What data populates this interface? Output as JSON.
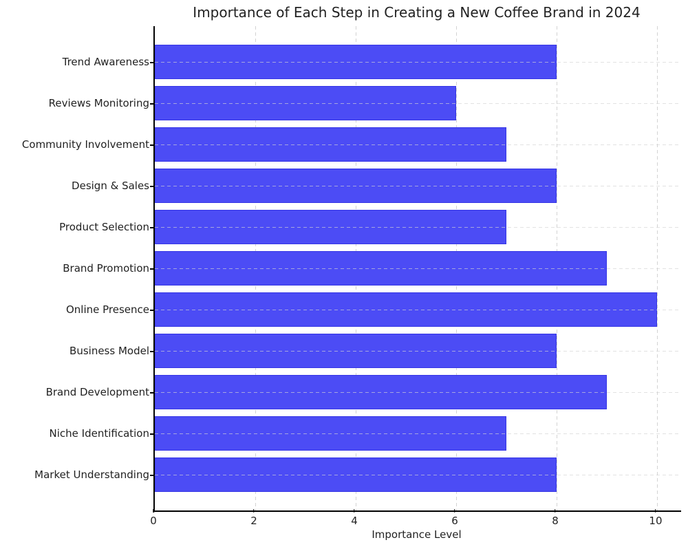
{
  "chart_data": {
    "type": "bar",
    "orientation": "horizontal",
    "title": "Importance of Each Step in Creating a New Coffee Brand in 2024",
    "xlabel": "Importance Level",
    "ylabel": "",
    "categories": [
      "Trend Awareness",
      "Reviews Monitoring",
      "Community Involvement",
      "Design & Sales",
      "Product Selection",
      "Brand Promotion",
      "Online Presence",
      "Business Model",
      "Brand Development",
      "Niche Identification",
      "Market Understanding"
    ],
    "values": [
      8,
      6,
      7,
      8,
      7,
      9,
      10,
      8,
      9,
      7,
      8
    ],
    "xlim": [
      0,
      10.48
    ],
    "xticks": [
      0,
      2,
      4,
      6,
      8,
      10
    ],
    "grid": true,
    "grid_style": "dashed",
    "legend": "none",
    "colors": {
      "bar": "#4c4cf5",
      "grid": "#d3d3d3",
      "axis": "#000000",
      "text": "#222222",
      "background": "#ffffff"
    }
  }
}
